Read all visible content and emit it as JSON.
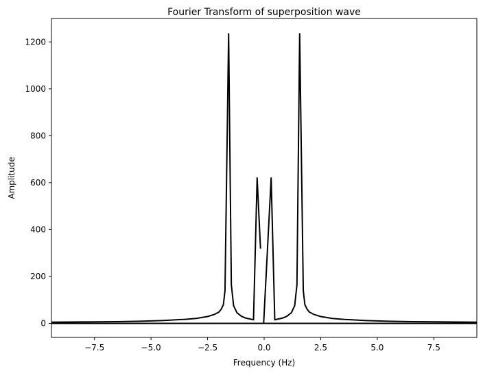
{
  "chart_data": {
    "type": "line",
    "title": "Fourier Transform of superposition wave",
    "xlabel": "Frequency (Hz)",
    "ylabel": "Amplitude",
    "xlim": [
      -9.4,
      9.4
    ],
    "ylim": [
      -60,
      1300
    ],
    "x_ticks": [
      -7.5,
      -5.0,
      -2.5,
      0.0,
      2.5,
      5.0,
      7.5
    ],
    "x_tick_labels": [
      "−7.5",
      "−5.0",
      "−2.5",
      "0.0",
      "2.5",
      "5.0",
      "7.5"
    ],
    "y_ticks": [
      0,
      200,
      400,
      600,
      800,
      1000,
      1200
    ],
    "y_tick_labels": [
      "0",
      "200",
      "400",
      "600",
      "800",
      "1000",
      "1200"
    ],
    "grid": false,
    "line_color": "#000000",
    "series": [
      {
        "segments": [
          [
            [
              -9.4,
              5
            ],
            [
              -8.0,
              6
            ],
            [
              -6.5,
              7
            ],
            [
              -5.5,
              9
            ],
            [
              -4.5,
              12
            ],
            [
              -3.5,
              17
            ],
            [
              -3.0,
              21
            ],
            [
              -2.5,
              29
            ],
            [
              -2.2,
              38
            ],
            [
              -2.0,
              48
            ],
            [
              -1.9,
              60
            ],
            [
              -1.8,
              80
            ],
            [
              -1.73,
              140
            ],
            [
              -1.57,
              1235
            ],
            [
              -1.45,
              165
            ],
            [
              -1.35,
              75
            ],
            [
              -1.2,
              45
            ],
            [
              -1.0,
              30
            ],
            [
              -0.8,
              22
            ],
            [
              -0.6,
              18
            ],
            [
              -0.47,
              15
            ],
            [
              -0.31,
              620
            ],
            [
              -0.16,
              318
            ]
          ],
          [
            [
              -0.02,
              3
            ],
            [
              0.31,
              620
            ],
            [
              0.47,
              15
            ],
            [
              0.6,
              18
            ],
            [
              0.8,
              22
            ],
            [
              1.0,
              30
            ],
            [
              1.2,
              45
            ],
            [
              1.35,
              75
            ],
            [
              1.45,
              165
            ],
            [
              1.57,
              1235
            ],
            [
              1.73,
              140
            ],
            [
              1.8,
              80
            ],
            [
              1.9,
              60
            ],
            [
              2.0,
              48
            ],
            [
              2.2,
              38
            ],
            [
              2.5,
              29
            ],
            [
              3.0,
              21
            ],
            [
              3.5,
              17
            ],
            [
              4.5,
              12
            ],
            [
              5.5,
              9
            ],
            [
              6.5,
              7
            ],
            [
              8.0,
              6
            ],
            [
              9.4,
              5
            ]
          ],
          [
            [
              -9.4,
              0
            ],
            [
              9.4,
              0
            ]
          ]
        ]
      }
    ]
  }
}
